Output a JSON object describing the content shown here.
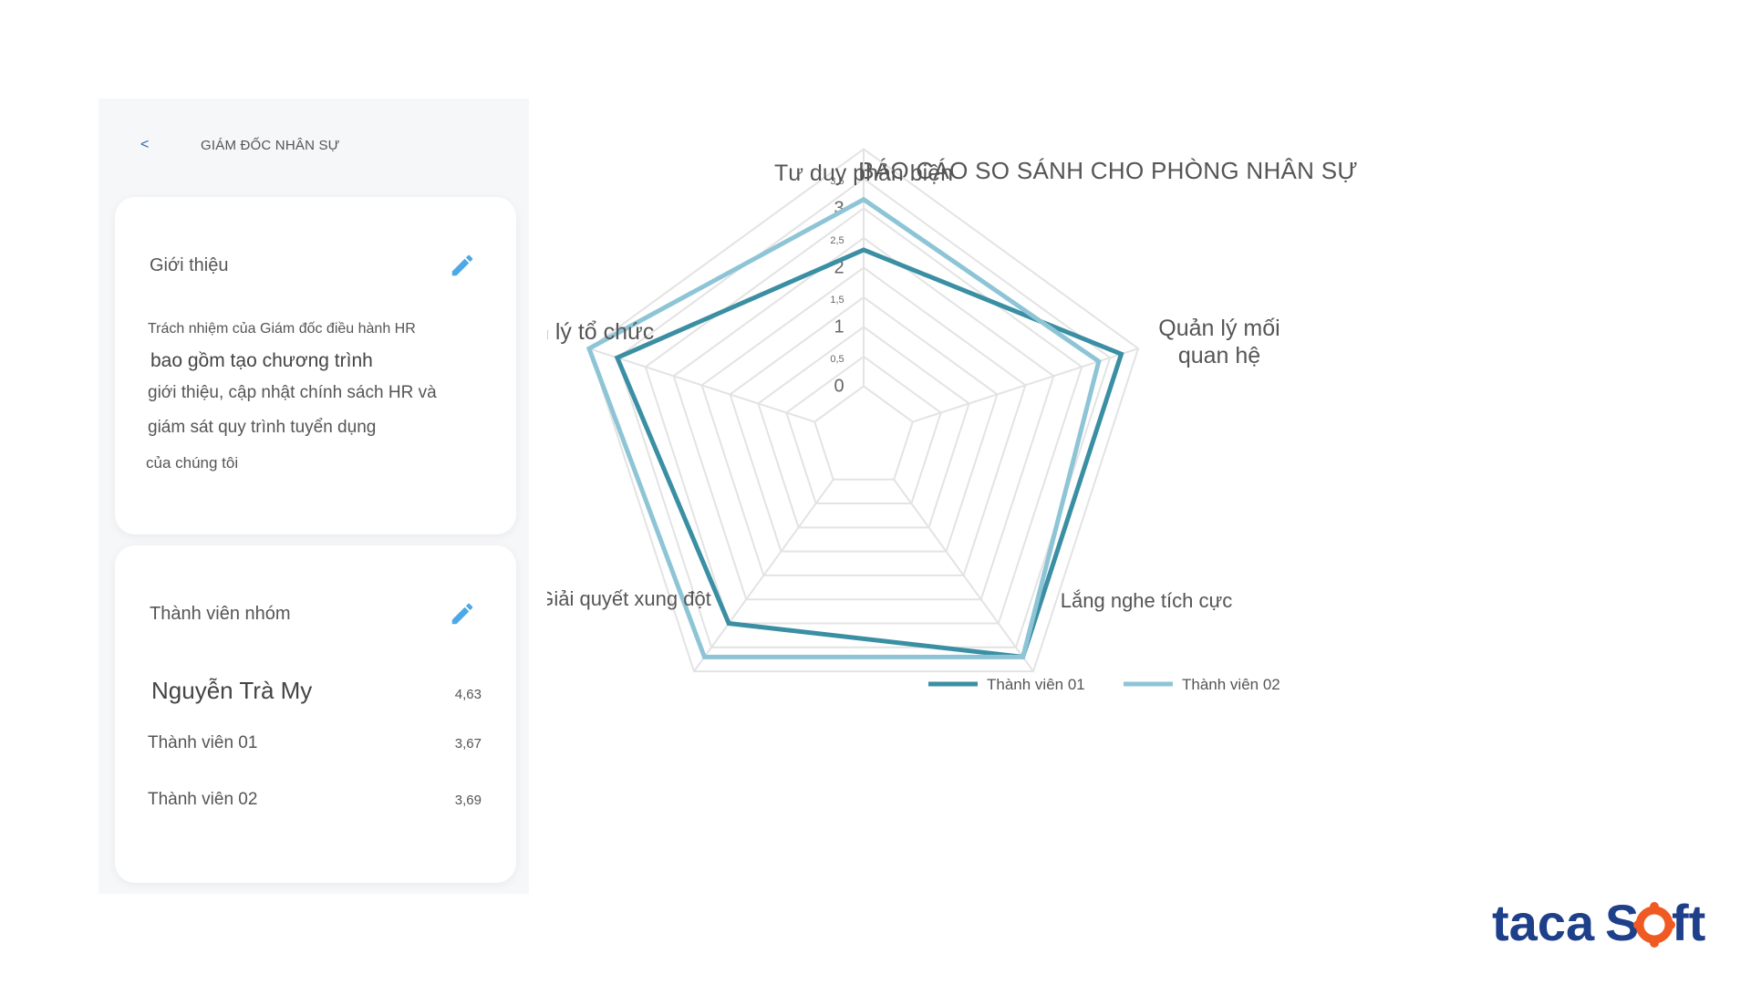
{
  "header": {
    "back_icon": "chevron-left-icon",
    "breadcrumb": "GIÁM ĐỐC NHÂN SỰ"
  },
  "intro_card": {
    "title": "Giới thiệu",
    "edit_icon": "pencil-icon",
    "lines": [
      "Trách nhiệm của Giám đốc điều hành HR",
      "bao gồm tạo chương trình",
      "giới thiệu, cập nhật chính sách HR và",
      "giám sát quy trình tuyển dụng",
      "của chúng tôi"
    ]
  },
  "team_card": {
    "title": "Thành viên nhóm",
    "edit_icon": "pencil-icon",
    "members": [
      {
        "name": "Nguyễn Trà My",
        "score": "4,63"
      },
      {
        "name": "Thành viên 01",
        "score": "3,67"
      },
      {
        "name": "Thành viên 02",
        "score": "3,69"
      }
    ]
  },
  "colors": {
    "series1": "#3a8fa3",
    "series2": "#8ec5d6",
    "accent": "#4da9e6",
    "logo_navy": "#1e3f8a",
    "logo_orange": "#f05a22"
  },
  "logo": {
    "text_part1": "taca",
    "text_part2": "S",
    "text_part3": "ft",
    "icon": "gear-o-icon"
  },
  "chart_data": {
    "type": "radar",
    "title": "BÁO CÁO SO SÁNH CHO PHÒNG NHÂN SỰ",
    "axes": [
      "Tư duy phản biện",
      "Quản lý mối quan hệ",
      "Lắng nghe tích cực",
      "Giải quyết xung đột",
      "Quản lý tổ chức"
    ],
    "axis_labels_display": [
      [
        "Tư duy phản biện"
      ],
      [
        "Quản lý mối",
        "quan hệ"
      ],
      [
        "Lắng nghe tích cực"
      ],
      [
        "Giải quyết xung đột"
      ],
      [
        "Quản lý tổ chức"
      ]
    ],
    "ticks": [
      "0",
      "0,5",
      "1",
      "1,5",
      "2",
      "2,5",
      "3",
      "3,5"
    ],
    "tick_values": [
      0,
      0.5,
      1,
      1.5,
      2,
      2.5,
      3,
      3.5
    ],
    "range": [
      0,
      3.5
    ],
    "grid": true,
    "legend_position": "bottom",
    "series": [
      {
        "name": "Thành viên 01",
        "values": [
          2.3,
          3.7,
          3.7,
          3.0,
          3.5
        ]
      },
      {
        "name": "Thành viên 02",
        "values": [
          3.15,
          3.3,
          3.7,
          3.7,
          4.0
        ]
      }
    ]
  }
}
